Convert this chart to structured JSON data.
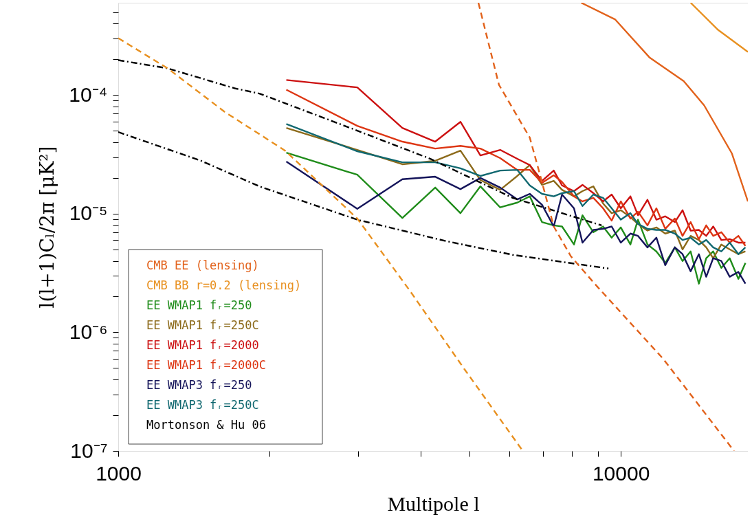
{
  "chart_data": {
    "type": "line",
    "xlabel": "Multipole l",
    "ylabel": "l(l+1)Cₗ/2π   [μK²]",
    "log": "xy",
    "grid": false,
    "legend": "bottom left",
    "xlim": [
      1000,
      17900
    ],
    "ylim": [
      1e-07,
      0.0006
    ],
    "xticks": [
      1000,
      {
        "value": 2000,
        "label": null
      },
      {
        "value": 3000,
        "label": null
      },
      {
        "value": 4000,
        "label": null
      },
      {
        "value": 5000,
        "label": null
      },
      {
        "value": 6000,
        "label": null
      },
      {
        "value": 7000,
        "label": null
      },
      {
        "value": 8000,
        "label": null
      },
      {
        "value": 9000,
        "label": null
      },
      10000
    ],
    "yticks": [
      {
        "value": 1e-07,
        "label": "10⁻⁷"
      },
      {
        "value": 2e-07,
        "label": null
      },
      {
        "value": 3e-07,
        "label": null
      },
      {
        "value": 4e-07,
        "label": null
      },
      {
        "value": 5e-07,
        "label": null
      },
      {
        "value": 6e-07,
        "label": null
      },
      {
        "value": 7e-07,
        "label": null
      },
      {
        "value": 8e-07,
        "label": null
      },
      {
        "value": 9e-07,
        "label": null
      },
      {
        "value": 1e-06,
        "label": "10⁻⁶"
      },
      {
        "value": 2e-06,
        "label": null
      },
      {
        "value": 3e-06,
        "label": null
      },
      {
        "value": 4e-06,
        "label": null
      },
      {
        "value": 5e-06,
        "label": null
      },
      {
        "value": 6e-06,
        "label": null
      },
      {
        "value": 7e-06,
        "label": null
      },
      {
        "value": 8e-06,
        "label": null
      },
      {
        "value": 9e-06,
        "label": null
      },
      {
        "value": 1e-05,
        "label": "10⁻⁵"
      },
      {
        "value": 2e-05,
        "label": null
      },
      {
        "value": 3e-05,
        "label": null
      },
      {
        "value": 4e-05,
        "label": null
      },
      {
        "value": 5e-05,
        "label": null
      },
      {
        "value": 6e-05,
        "label": null
      },
      {
        "value": 7e-05,
        "label": null
      },
      {
        "value": 8e-05,
        "label": null
      },
      {
        "value": 9e-05,
        "label": null
      },
      {
        "value": 0.0001,
        "label": "10⁻⁴"
      },
      {
        "value": 0.0002,
        "label": null
      },
      {
        "value": 0.0003,
        "label": null
      },
      {
        "value": 0.0004,
        "label": null
      },
      {
        "value": 0.0005,
        "label": null
      }
    ],
    "x": [
      2160,
      2990,
      3676,
      4273,
      4797,
      5256,
      5754,
      6223,
      6590,
      6970,
      7355,
      7640,
      8070,
      8390,
      8820,
      9220,
      9590,
      10000,
      10450,
      10820,
      11300,
      11770,
      12260,
      12810,
      13270,
      13770,
      14300,
      14790,
      15270,
      15850,
      16470,
      17140,
      17700
    ],
    "series": [
      {
        "name": "CMB EE (lensing)",
        "color": "#e2621b",
        "line_style": "solid",
        "x": [
          8340,
          9750,
          11400,
          13340,
          14650,
          16630,
          17900
        ],
        "values": [
          0.0006,
          0.000433,
          0.000208,
          0.000131,
          8.19e-05,
          3.23e-05,
          1.27e-05
        ]
      },
      {
        "name": "CMB BB r=0.2 (lensing)",
        "color": "#e8901f",
        "line_style": "solid",
        "x": [
          13770,
          15620,
          17900
        ],
        "values": [
          0.0006,
          0.000354,
          0.000231
        ]
      },
      {
        "name": "EE WMAP1 fᵣ=250",
        "color": "#1f8c1a",
        "line_style": "solid",
        "values": [
          3.27e-05,
          2.13e-05,
          9.2e-06,
          1.66e-05,
          1.01e-05,
          1.7e-05,
          1.13e-05,
          1.24e-05,
          1.4e-05,
          8.5e-06,
          7.97e-06,
          7.8e-06,
          5.5e-06,
          9.7e-06,
          6.98e-06,
          7.8e-06,
          6.28e-06,
          7.66e-06,
          5.5e-06,
          8.9e-06,
          5.5e-06,
          4.81e-06,
          3.84e-06,
          5.2e-06,
          3.99e-06,
          4.81e-06,
          2.57e-06,
          4.21e-06,
          4.81e-06,
          3.49e-06,
          4.21e-06,
          2.82e-06,
          3.84e-06
        ]
      },
      {
        "name": "EE WMAP1 fᵣ=250C",
        "color": "#8c6a1a",
        "line_style": "solid",
        "values": [
          5.28e-05,
          3.45e-05,
          2.61e-05,
          2.79e-05,
          3.4e-05,
          1.92e-05,
          1.59e-05,
          2.08e-05,
          2.57e-05,
          1.75e-05,
          1.89e-05,
          1.59e-05,
          1.4e-05,
          1.55e-05,
          1.7e-05,
          1.22e-05,
          1.01e-05,
          1.07e-05,
          9.35e-06,
          8.2e-06,
          7.2e-06,
          7.66e-06,
          6.8e-06,
          7.2e-06,
          5e-06,
          6.5e-06,
          6e-06,
          5.2e-06,
          4.21e-06,
          5.5e-06,
          5e-06,
          4.56e-06,
          4.81e-06
        ]
      },
      {
        "name": "EE WMAP1 fᵣ=2000",
        "color": "#cc1010",
        "line_style": "solid",
        "values": [
          0.000134,
          0.000116,
          5.28e-05,
          4.05e-05,
          5.95e-05,
          3.1e-05,
          3.45e-05,
          2.9e-05,
          2.57e-05,
          1.89e-05,
          2.31e-05,
          1.73e-05,
          1.55e-05,
          1.75e-05,
          1.49e-05,
          1.27e-05,
          1.45e-05,
          1.11e-05,
          1.4e-05,
          9.7e-06,
          1.31e-05,
          8.9e-06,
          9.5e-06,
          8.5e-06,
          1.07e-05,
          7.2e-06,
          7.3e-06,
          6.5e-06,
          7.8e-06,
          6e-06,
          6.1e-06,
          5.7e-06,
          5.7e-06
        ]
      },
      {
        "name": "EE WMAP1 fᵣ=2000C",
        "color": "#dd3512",
        "line_style": "solid",
        "values": [
          0.000111,
          5.5e-05,
          4.05e-05,
          3.54e-05,
          3.73e-05,
          3.54e-05,
          2.94e-05,
          2.34e-05,
          2.34e-05,
          1.82e-05,
          2.11e-05,
          1.85e-05,
          1.4e-05,
          1.27e-05,
          1.36e-05,
          1.11e-05,
          8.75e-06,
          1.27e-05,
          9.1e-06,
          1.04e-05,
          7.97e-06,
          1.11e-05,
          7.46e-06,
          9.1e-06,
          6.5e-06,
          8.5e-06,
          6.1e-06,
          7.97e-06,
          6.5e-06,
          6.98e-06,
          5.7e-06,
          6.5e-06,
          5.35e-06
        ]
      },
      {
        "name": "EE WMAP3 fᵣ=250",
        "color": "#14145a",
        "line_style": "solid",
        "values": [
          2.75e-05,
          1.1e-05,
          1.95e-05,
          2.05e-05,
          1.61e-05,
          2e-05,
          1.66e-05,
          1.32e-05,
          1.47e-05,
          1.19e-05,
          7.8e-06,
          1.45e-05,
          1.11e-05,
          5.7e-06,
          7.3e-06,
          7.46e-06,
          7.8e-06,
          5.7e-06,
          6.8e-06,
          6.5e-06,
          5.2e-06,
          6.28e-06,
          3.68e-06,
          5.2e-06,
          4.56e-06,
          3.27e-06,
          4.56e-06,
          2.94e-06,
          4.21e-06,
          3.99e-06,
          2.94e-06,
          3.23e-06,
          2.57e-06
        ]
      },
      {
        "name": "EE WMAP3 fᵣ=250C",
        "color": "#106870",
        "line_style": "solid",
        "values": [
          5.71e-05,
          3.36e-05,
          2.71e-05,
          2.71e-05,
          2.41e-05,
          2.08e-05,
          2.31e-05,
          2.34e-05,
          1.73e-05,
          1.47e-05,
          1.4e-05,
          1.49e-05,
          1.55e-05,
          1.16e-05,
          1.45e-05,
          1.36e-05,
          1.11e-05,
          8.9e-06,
          1.01e-05,
          8.2e-06,
          7.46e-06,
          7.3e-06,
          7.3e-06,
          6.8e-06,
          6e-06,
          6.28e-06,
          5.5e-06,
          6e-06,
          5.2e-06,
          4.81e-06,
          5.7e-06,
          4.56e-06,
          5.2e-06
        ]
      },
      {
        "name": "Mortonson & Hu 06",
        "color": "#000000",
        "line_style": "dashdot",
        "x": [
          1000,
          1254,
          1705,
          1909,
          2780,
          4180,
          6095,
          9160
        ],
        "values": [
          0.000197,
          0.000168,
          0.000114,
          0.000103,
          5.64e-05,
          2.9e-05,
          1.36e-05,
          7.97e-06
        ]
      },
      {
        "color": "#000000",
        "line_style": "dashdot",
        "x": [
          1000,
          1462,
          1909,
          2990,
          4494,
          6095,
          9450
        ],
        "values": [
          4.88e-05,
          2.79e-05,
          1.7e-05,
          8.9e-06,
          5.87e-06,
          4.5e-06,
          3.45e-06
        ]
      },
      {
        "color": "#e2621b",
        "line_style": "dashed",
        "x": [
          5208,
          5722,
          6590,
          6900,
          7355,
          7954,
          8870,
          12150,
          16800
        ],
        "values": [
          0.0006,
          0.000122,
          4.38e-05,
          2.16e-05,
          7.8e-06,
          4.38e-06,
          2.57e-06,
          5.96e-07,
          1e-07
        ]
      },
      {
        "color": "#e8901f",
        "line_style": "dashed",
        "x": [
          1000,
          1254,
          1632,
          2148,
          2990,
          3802,
          4887,
          6383
        ],
        "values": [
          0.000302,
          0.000168,
          7.17e-05,
          3.4e-05,
          9.1e-06,
          2.25e-06,
          4.88e-07,
          1e-07
        ]
      }
    ]
  }
}
